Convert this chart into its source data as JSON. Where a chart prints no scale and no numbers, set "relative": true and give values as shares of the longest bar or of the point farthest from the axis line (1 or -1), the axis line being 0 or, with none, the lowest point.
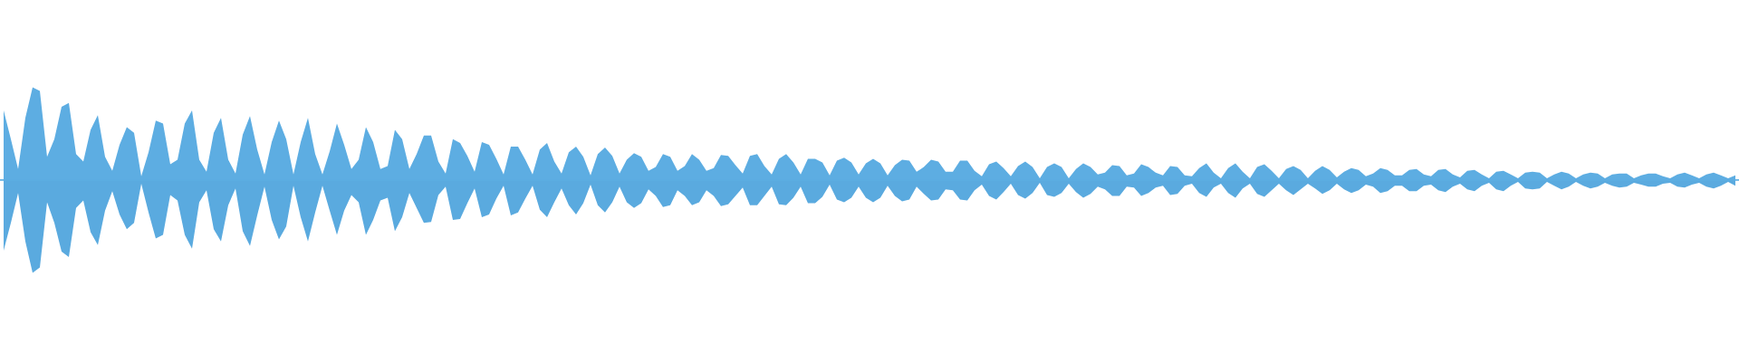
{
  "chart_data": {
    "type": "area",
    "relative": true,
    "ref_lines": [
      {
        "axis": "y",
        "value": 0,
        "color": "#5dade2"
      }
    ],
    "categories": [
      null,
      null,
      null,
      null,
      null,
      null,
      null,
      null,
      null,
      null,
      null,
      null,
      null,
      null,
      null,
      null,
      null,
      null,
      null,
      null,
      null,
      null,
      null,
      null,
      null,
      null,
      null,
      null,
      null,
      null,
      null,
      null,
      null,
      null,
      null,
      null,
      null,
      null,
      null,
      null,
      null,
      null,
      null,
      null,
      null,
      null,
      null,
      null,
      null,
      null,
      null,
      null,
      null,
      null,
      null,
      null,
      null,
      null,
      null,
      null,
      null,
      null,
      null,
      null,
      null,
      null,
      null,
      null,
      null,
      null,
      null,
      null,
      null,
      null,
      null,
      null,
      null,
      null,
      null,
      null,
      null,
      null,
      null,
      null,
      null,
      null,
      null,
      null,
      null,
      null,
      null,
      null,
      null,
      null,
      null,
      null,
      null,
      null,
      null,
      null,
      null,
      null,
      null,
      null,
      null,
      null,
      null,
      null,
      null,
      null,
      null,
      null,
      null,
      null,
      null,
      null,
      null,
      null,
      null,
      null,
      null,
      null,
      null,
      null,
      null,
      null,
      null,
      null,
      null,
      null,
      null,
      null,
      null,
      null,
      null,
      null,
      null,
      null,
      null,
      null,
      null,
      null,
      null,
      null,
      null,
      null,
      null,
      null,
      null,
      null,
      null,
      null,
      null,
      null,
      null,
      null,
      null,
      null,
      null,
      null,
      null,
      null,
      null,
      null,
      null,
      null,
      null,
      null,
      null,
      null,
      null,
      null,
      null,
      null,
      null,
      null,
      null,
      null,
      null,
      null,
      null,
      null,
      null,
      null,
      null,
      null,
      null,
      null,
      null,
      null,
      null,
      null,
      null,
      null,
      null,
      null,
      null,
      null,
      null,
      null,
      null,
      null,
      null,
      null,
      null,
      null,
      null,
      null,
      null,
      null,
      null,
      null,
      null,
      null,
      null,
      null,
      null,
      null,
      null,
      null,
      null,
      null,
      null,
      null,
      null,
      null,
      null,
      null,
      null,
      null,
      null,
      null,
      null,
      null,
      null,
      null,
      null,
      null,
      null,
      null
    ],
    "series": [
      {
        "color": "#5dade2",
        "values": [
          0.75,
          0.44,
          0.12,
          0.67,
          1.0,
          0.96,
          0.25,
          0.44,
          0.79,
          0.83,
          0.28,
          0.2,
          0.54,
          0.7,
          0.25,
          0.1,
          0.38,
          0.57,
          0.51,
          0.04,
          0.3,
          0.64,
          0.61,
          0.17,
          0.22,
          0.61,
          0.75,
          0.22,
          0.09,
          0.51,
          0.67,
          0.22,
          0.07,
          0.49,
          0.69,
          0.33,
          0.06,
          0.41,
          0.64,
          0.44,
          0.06,
          0.41,
          0.67,
          0.28,
          0.06,
          0.31,
          0.61,
          0.38,
          0.12,
          0.22,
          0.57,
          0.41,
          0.12,
          0.15,
          0.54,
          0.44,
          0.12,
          0.28,
          0.48,
          0.48,
          0.2,
          0.07,
          0.44,
          0.4,
          0.26,
          0.09,
          0.41,
          0.38,
          0.23,
          0.06,
          0.36,
          0.36,
          0.22,
          0.06,
          0.33,
          0.4,
          0.2,
          0.07,
          0.3,
          0.36,
          0.25,
          0.05,
          0.28,
          0.35,
          0.26,
          0.07,
          0.22,
          0.29,
          0.25,
          0.1,
          0.14,
          0.28,
          0.25,
          0.1,
          0.15,
          0.28,
          0.22,
          0.1,
          0.13,
          0.27,
          0.26,
          0.16,
          0.07,
          0.26,
          0.28,
          0.15,
          0.06,
          0.23,
          0.28,
          0.19,
          0.06,
          0.23,
          0.23,
          0.19,
          0.05,
          0.21,
          0.24,
          0.19,
          0.06,
          0.18,
          0.23,
          0.18,
          0.05,
          0.16,
          0.22,
          0.21,
          0.09,
          0.14,
          0.22,
          0.2,
          0.09,
          0.09,
          0.21,
          0.21,
          0.1,
          0.04,
          0.17,
          0.2,
          0.13,
          0.04,
          0.15,
          0.2,
          0.14,
          0.02,
          0.14,
          0.18,
          0.14,
          0.02,
          0.12,
          0.18,
          0.14,
          0.06,
          0.08,
          0.16,
          0.15,
          0.05,
          0.07,
          0.17,
          0.14,
          0.08,
          0.05,
          0.15,
          0.14,
          0.05,
          0.04,
          0.13,
          0.18,
          0.08,
          0.02,
          0.13,
          0.18,
          0.09,
          0.02,
          0.14,
          0.17,
          0.1,
          0.02,
          0.12,
          0.15,
          0.11,
          0.02,
          0.1,
          0.15,
          0.11,
          0.03,
          0.09,
          0.13,
          0.11,
          0.04,
          0.07,
          0.13,
          0.11,
          0.05,
          0.05,
          0.11,
          0.12,
          0.06,
          0.04,
          0.11,
          0.12,
          0.06,
          0.03,
          0.1,
          0.11,
          0.06,
          0.02,
          0.09,
          0.1,
          0.06,
          0.02,
          0.08,
          0.09,
          0.08,
          0.02,
          0.06,
          0.09,
          0.07,
          0.02,
          0.06,
          0.08,
          0.07,
          0.02,
          0.06,
          0.07,
          0.07,
          0.02,
          0.05,
          0.07,
          0.07,
          0.04,
          0.02,
          0.06,
          0.08,
          0.05,
          0.02,
          0.06,
          0.08,
          0.05,
          0.02,
          0.05
        ]
      },
      {
        "color": "#5aaadf",
        "values": [
          -0.76,
          -0.46,
          -0.14,
          -0.66,
          -1.0,
          -0.94,
          -0.24,
          -0.46,
          -0.77,
          -0.83,
          -0.3,
          -0.22,
          -0.56,
          -0.7,
          -0.33,
          -0.12,
          -0.37,
          -0.53,
          -0.46,
          -0.04,
          -0.35,
          -0.63,
          -0.59,
          -0.16,
          -0.22,
          -0.59,
          -0.74,
          -0.24,
          -0.11,
          -0.53,
          -0.66,
          -0.27,
          -0.09,
          -0.55,
          -0.71,
          -0.38,
          -0.07,
          -0.43,
          -0.64,
          -0.5,
          -0.06,
          -0.4,
          -0.66,
          -0.35,
          -0.06,
          -0.33,
          -0.59,
          -0.33,
          -0.16,
          -0.24,
          -0.59,
          -0.43,
          -0.22,
          -0.19,
          -0.55,
          -0.4,
          -0.14,
          -0.3,
          -0.46,
          -0.45,
          -0.16,
          -0.07,
          -0.43,
          -0.42,
          -0.25,
          -0.09,
          -0.4,
          -0.37,
          -0.2,
          -0.06,
          -0.38,
          -0.35,
          -0.2,
          -0.06,
          -0.32,
          -0.4,
          -0.24,
          -0.09,
          -0.27,
          -0.37,
          -0.25,
          -0.05,
          -0.27,
          -0.35,
          -0.24,
          -0.07,
          -0.24,
          -0.3,
          -0.25,
          -0.1,
          -0.17,
          -0.29,
          -0.27,
          -0.11,
          -0.17,
          -0.27,
          -0.24,
          -0.11,
          -0.17,
          -0.28,
          -0.26,
          -0.17,
          -0.08,
          -0.27,
          -0.27,
          -0.17,
          -0.07,
          -0.26,
          -0.27,
          -0.19,
          -0.07,
          -0.25,
          -0.25,
          -0.18,
          -0.05,
          -0.21,
          -0.24,
          -0.19,
          -0.07,
          -0.19,
          -0.24,
          -0.19,
          -0.06,
          -0.17,
          -0.23,
          -0.21,
          -0.07,
          -0.15,
          -0.22,
          -0.21,
          -0.1,
          -0.11,
          -0.21,
          -0.22,
          -0.11,
          -0.05,
          -0.17,
          -0.21,
          -0.13,
          -0.04,
          -0.16,
          -0.2,
          -0.14,
          -0.03,
          -0.16,
          -0.18,
          -0.14,
          -0.04,
          -0.13,
          -0.19,
          -0.15,
          -0.07,
          -0.1,
          -0.17,
          -0.17,
          -0.07,
          -0.08,
          -0.17,
          -0.14,
          -0.08,
          -0.06,
          -0.16,
          -0.15,
          -0.06,
          -0.04,
          -0.14,
          -0.18,
          -0.08,
          -0.04,
          -0.14,
          -0.19,
          -0.09,
          -0.04,
          -0.15,
          -0.18,
          -0.11,
          -0.04,
          -0.11,
          -0.16,
          -0.1,
          -0.04,
          -0.09,
          -0.15,
          -0.11,
          -0.04,
          -0.1,
          -0.14,
          -0.11,
          -0.05,
          -0.07,
          -0.14,
          -0.12,
          -0.06,
          -0.06,
          -0.12,
          -0.12,
          -0.06,
          -0.05,
          -0.11,
          -0.13,
          -0.07,
          -0.04,
          -0.1,
          -0.12,
          -0.06,
          -0.03,
          -0.1,
          -0.12,
          -0.06,
          -0.02,
          -0.09,
          -0.1,
          -0.09,
          -0.02,
          -0.06,
          -0.1,
          -0.07,
          -0.02,
          -0.06,
          -0.09,
          -0.07,
          -0.03,
          -0.06,
          -0.08,
          -0.07,
          -0.03,
          -0.05,
          -0.07,
          -0.07,
          -0.04,
          -0.03,
          -0.07,
          -0.08,
          -0.05,
          -0.03,
          -0.07,
          -0.09,
          -0.06,
          -0.02,
          -0.06
        ]
      }
    ]
  }
}
